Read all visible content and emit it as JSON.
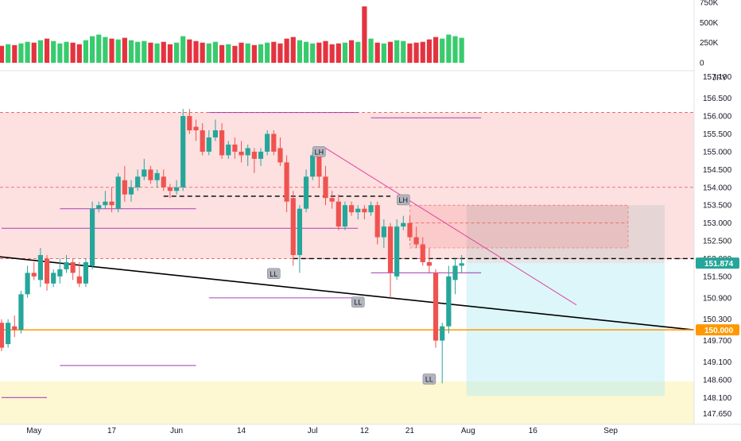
{
  "chart_data": {
    "type": "candlestick",
    "currency_label": "JPY",
    "volume_axis": {
      "ticks": [
        "750K",
        "500K",
        "250K",
        "0"
      ],
      "tick_values": [
        750000,
        500000,
        250000,
        0
      ]
    },
    "price_axis": {
      "ylim": [
        147.35,
        157.25
      ],
      "ticks": [
        "157.100",
        "156.500",
        "156.000",
        "155.500",
        "155.000",
        "154.500",
        "154.000",
        "153.500",
        "153.000",
        "152.500",
        "152.000",
        "151.500",
        "150.900",
        "150.300",
        "149.700",
        "149.100",
        "148.600",
        "148.100",
        "147.650"
      ],
      "tick_values": [
        157.1,
        156.5,
        156.0,
        155.5,
        155.0,
        154.5,
        154.0,
        153.5,
        153.0,
        152.5,
        152.0,
        151.5,
        150.9,
        150.3,
        149.7,
        149.1,
        148.6,
        148.1,
        147.65
      ]
    },
    "x_axis": {
      "labels": [
        "May",
        "17",
        "Jun",
        "14",
        "Jul",
        "12",
        "21",
        "Aug",
        "16",
        "Sep"
      ],
      "label_index": [
        5,
        17,
        27,
        37,
        48,
        56,
        63,
        72,
        82,
        94
      ]
    },
    "last_price": {
      "value": 151.874,
      "label": "151.874"
    },
    "level_line": {
      "value": 150.0,
      "label": "150.000"
    },
    "candles": [
      [
        150.2,
        150.3,
        149.4,
        149.5
      ],
      [
        149.6,
        150.3,
        149.5,
        150.2
      ],
      [
        150.1,
        150.4,
        149.8,
        150.0
      ],
      [
        150.0,
        151.1,
        149.9,
        151.0
      ],
      [
        151.0,
        151.8,
        150.9,
        151.6
      ],
      [
        151.6,
        151.9,
        151.4,
        151.5
      ],
      [
        151.4,
        152.3,
        151.2,
        152.1
      ],
      [
        152.0,
        152.1,
        151.1,
        151.3
      ],
      [
        151.3,
        151.7,
        151.2,
        151.6
      ],
      [
        151.5,
        152.0,
        151.3,
        151.7
      ],
      [
        151.7,
        152.1,
        151.6,
        151.9
      ],
      [
        151.9,
        152.0,
        151.4,
        151.6
      ],
      [
        151.5,
        151.9,
        151.2,
        151.3
      ],
      [
        151.3,
        152.0,
        151.2,
        151.9
      ],
      [
        151.8,
        153.6,
        151.7,
        153.4
      ],
      [
        153.4,
        153.6,
        153.3,
        153.5
      ],
      [
        153.5,
        153.9,
        153.4,
        153.6
      ],
      [
        153.6,
        154.0,
        153.3,
        153.5
      ],
      [
        153.4,
        154.4,
        153.3,
        154.3
      ],
      [
        154.2,
        154.6,
        153.6,
        153.8
      ],
      [
        153.8,
        154.2,
        153.6,
        154.0
      ],
      [
        154.0,
        154.5,
        153.9,
        154.3
      ],
      [
        154.3,
        154.8,
        154.2,
        154.5
      ],
      [
        154.5,
        154.6,
        154.1,
        154.2
      ],
      [
        154.2,
        154.5,
        154.0,
        154.4
      ],
      [
        154.3,
        154.5,
        153.9,
        154.0
      ],
      [
        154.0,
        154.1,
        153.7,
        153.9
      ],
      [
        153.9,
        154.2,
        153.8,
        154.0
      ],
      [
        154.0,
        156.2,
        153.9,
        156.0
      ],
      [
        156.0,
        156.2,
        155.5,
        155.6
      ],
      [
        155.7,
        155.9,
        155.3,
        155.6
      ],
      [
        155.6,
        155.8,
        154.9,
        155.0
      ],
      [
        155.0,
        155.6,
        154.9,
        155.4
      ],
      [
        155.4,
        155.9,
        155.3,
        155.6
      ],
      [
        155.6,
        155.8,
        154.8,
        154.9
      ],
      [
        154.9,
        155.3,
        154.8,
        155.2
      ],
      [
        155.2,
        155.4,
        154.8,
        155.0
      ],
      [
        155.0,
        155.3,
        154.7,
        154.9
      ],
      [
        154.9,
        155.2,
        154.6,
        155.1
      ],
      [
        155.0,
        155.1,
        154.4,
        154.8
      ],
      [
        154.8,
        155.1,
        154.6,
        155.0
      ],
      [
        155.0,
        155.6,
        154.9,
        155.5
      ],
      [
        155.5,
        155.6,
        154.9,
        155.0
      ],
      [
        155.1,
        155.4,
        154.6,
        154.7
      ],
      [
        154.7,
        154.9,
        153.3,
        153.6
      ],
      [
        153.7,
        153.9,
        151.8,
        152.1
      ],
      [
        152.1,
        153.5,
        151.6,
        153.4
      ],
      [
        153.4,
        154.5,
        153.3,
        154.3
      ],
      [
        154.3,
        155.0,
        154.2,
        154.9
      ],
      [
        154.9,
        155.1,
        154.0,
        154.3
      ],
      [
        154.3,
        154.6,
        153.5,
        153.7
      ],
      [
        153.7,
        153.9,
        153.4,
        153.6
      ],
      [
        153.6,
        153.8,
        152.8,
        152.9
      ],
      [
        152.9,
        153.6,
        152.8,
        153.5
      ],
      [
        153.5,
        153.6,
        153.2,
        153.3
      ],
      [
        153.3,
        153.5,
        153.1,
        153.4
      ],
      [
        153.4,
        153.5,
        153.1,
        153.3
      ],
      [
        153.3,
        153.6,
        153.2,
        153.5
      ],
      [
        153.5,
        153.6,
        152.4,
        152.6
      ],
      [
        152.6,
        153.1,
        152.3,
        152.9
      ],
      [
        152.9,
        153.0,
        150.9,
        151.6
      ],
      [
        151.5,
        153.1,
        151.4,
        152.9
      ],
      [
        152.9,
        153.2,
        152.8,
        153.0
      ],
      [
        153.0,
        153.2,
        152.5,
        152.6
      ],
      [
        152.6,
        152.9,
        152.3,
        152.4
      ],
      [
        152.4,
        152.6,
        151.8,
        151.9
      ],
      [
        151.9,
        152.3,
        151.6,
        151.8
      ],
      [
        151.6,
        151.7,
        149.5,
        149.7
      ],
      [
        149.7,
        150.2,
        148.5,
        150.1
      ],
      [
        150.1,
        151.8,
        149.9,
        151.5
      ],
      [
        151.4,
        152.0,
        151.0,
        151.8
      ],
      [
        151.8,
        152.1,
        151.6,
        151.87
      ]
    ],
    "volume": [
      210000,
      230000,
      220000,
      240000,
      260000,
      250000,
      280000,
      300000,
      270000,
      240000,
      260000,
      250000,
      230000,
      280000,
      330000,
      350000,
      320000,
      300000,
      290000,
      310000,
      280000,
      260000,
      270000,
      250000,
      240000,
      260000,
      230000,
      250000,
      330000,
      290000,
      270000,
      250000,
      240000,
      260000,
      220000,
      230000,
      210000,
      250000,
      240000,
      220000,
      230000,
      250000,
      260000,
      240000,
      300000,
      320000,
      280000,
      260000,
      240000,
      250000,
      270000,
      230000,
      240000,
      250000,
      280000,
      260000,
      700000,
      300000,
      250000,
      240000,
      260000,
      280000,
      270000,
      240000,
      250000,
      260000,
      290000,
      320000,
      300000,
      350000,
      330000,
      310000
    ],
    "zones": [
      {
        "id": "resistance-zone",
        "from": 152.0,
        "to": 156.1,
        "color": "#fde0e0"
      },
      {
        "id": "support-zone",
        "from": 147.35,
        "to": 148.55,
        "color": "#fdf7d2"
      }
    ],
    "annotations": [
      {
        "text": "LH",
        "x": 49,
        "y": 155.0
      },
      {
        "text": "LH",
        "x": 62,
        "y": 153.65
      },
      {
        "text": "LL",
        "x": 42,
        "y": 151.58
      },
      {
        "text": "LL",
        "x": 55,
        "y": 150.78
      },
      {
        "text": "LL",
        "x": 66,
        "y": 148.62
      }
    ]
  }
}
